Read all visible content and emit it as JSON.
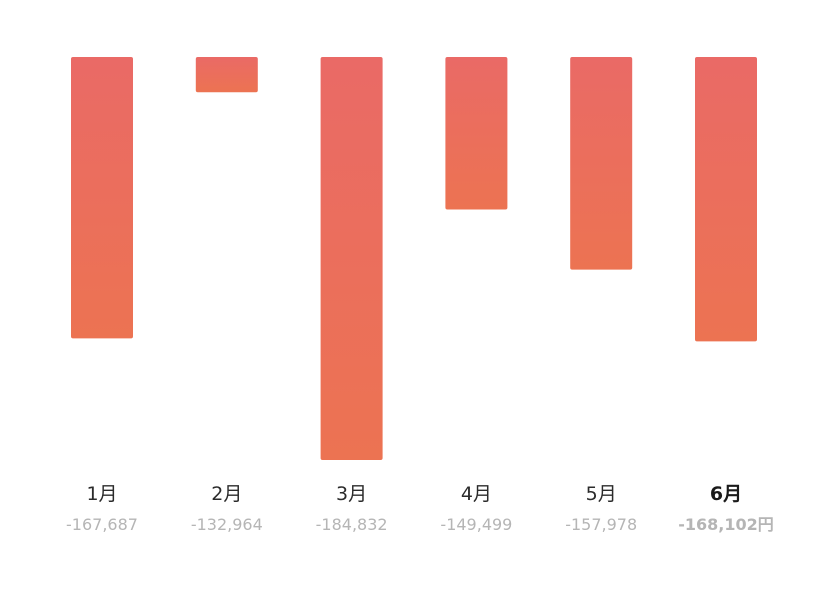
{
  "chart_data": {
    "type": "bar",
    "categories": [
      "1月",
      "2月",
      "3月",
      "4月",
      "5月",
      "6月"
    ],
    "values": [
      -167687,
      -132964,
      -184832,
      -149499,
      -157978,
      -168102
    ],
    "value_labels": [
      "-167,687",
      "-132,964",
      "-184,832",
      "-149,499",
      "-157,978",
      "-168,102円"
    ],
    "selected_index": 5,
    "ylim": [
      -185000,
      -127000
    ],
    "title": "",
    "xlabel": "",
    "ylabel": "",
    "grid": false,
    "orientation": "downward-from-top"
  },
  "colors": {
    "bar_top": "#ea6a66",
    "bar_bottom": "#ec7352",
    "label_text": "#2b2b2b",
    "value_text": "#b5b5b5",
    "selected_value_text": "#d9534b"
  }
}
